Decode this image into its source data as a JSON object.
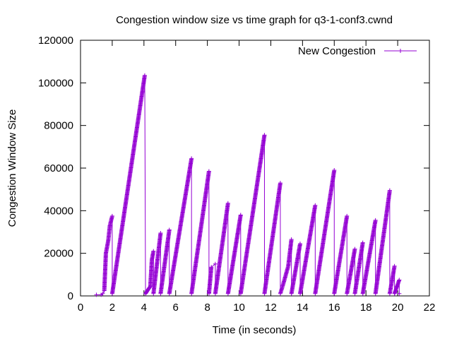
{
  "chart_data": {
    "type": "line",
    "title": "Congestion window size vs time graph for q3-1-conf3.cwnd",
    "xlabel": "Time (in seconds)",
    "ylabel": "Congestion Window Size",
    "xlim": [
      0,
      22
    ],
    "ylim": [
      0,
      120000
    ],
    "xticks": [
      0,
      2,
      4,
      6,
      8,
      10,
      12,
      14,
      16,
      18,
      20,
      22
    ],
    "yticks": [
      0,
      20000,
      40000,
      60000,
      80000,
      100000,
      120000
    ],
    "grid": false,
    "legend_position": "top-right",
    "series": [
      {
        "name": "New Congestion",
        "color": "#9400d3",
        "marker": "plus",
        "points": [
          [
            1.0,
            536
          ],
          [
            1.3,
            536
          ],
          [
            1.4,
            1072
          ],
          [
            1.5,
            2500
          ],
          [
            1.6,
            20000
          ],
          [
            1.75,
            26000
          ],
          [
            1.85,
            33000
          ],
          [
            2.0,
            37500
          ],
          [
            2.0,
            1072
          ],
          [
            4.05,
            103500
          ],
          [
            4.1,
            1072
          ],
          [
            4.4,
            4500
          ],
          [
            4.5,
            17000
          ],
          [
            4.6,
            21000
          ],
          [
            4.6,
            1072
          ],
          [
            5.05,
            29500
          ],
          [
            5.05,
            1072
          ],
          [
            5.6,
            31000
          ],
          [
            5.6,
            1072
          ],
          [
            7.0,
            64500
          ],
          [
            7.0,
            1072
          ],
          [
            8.1,
            58500
          ],
          [
            8.1,
            1072
          ],
          [
            8.25,
            13500
          ],
          [
            8.5,
            15000
          ],
          [
            8.5,
            1072
          ],
          [
            9.3,
            43500
          ],
          [
            9.3,
            1072
          ],
          [
            10.1,
            38000
          ],
          [
            10.1,
            1072
          ],
          [
            11.6,
            75500
          ],
          [
            11.6,
            1072
          ],
          [
            12.6,
            53000
          ],
          [
            12.6,
            1072
          ],
          [
            12.8,
            6000
          ],
          [
            13.1,
            14000
          ],
          [
            13.3,
            26500
          ],
          [
            13.3,
            1072
          ],
          [
            13.85,
            24500
          ],
          [
            13.85,
            1072
          ],
          [
            14.8,
            42500
          ],
          [
            14.8,
            1072
          ],
          [
            16.0,
            59000
          ],
          [
            16.0,
            1072
          ],
          [
            16.8,
            37500
          ],
          [
            16.8,
            1072
          ],
          [
            17.3,
            22000
          ],
          [
            17.3,
            1072
          ],
          [
            17.8,
            25000
          ],
          [
            17.8,
            1072
          ],
          [
            18.6,
            35500
          ],
          [
            18.6,
            1072
          ],
          [
            19.5,
            49500
          ],
          [
            19.5,
            1072
          ],
          [
            19.8,
            14000
          ],
          [
            19.8,
            1072
          ],
          [
            20.1,
            7500
          ],
          [
            20.1,
            1072
          ]
        ]
      }
    ]
  }
}
